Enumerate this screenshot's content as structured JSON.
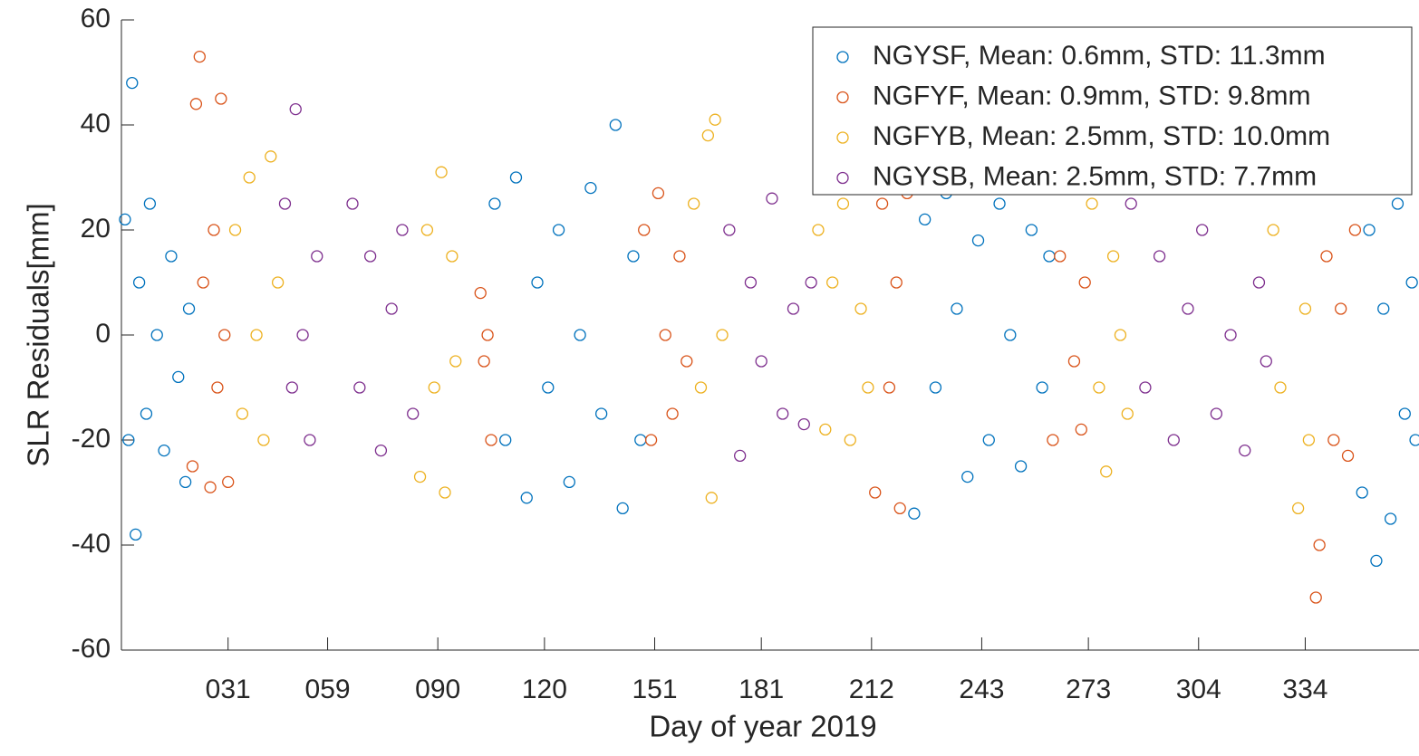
{
  "chart_data": {
    "type": "scatter",
    "xlabel": "Day of year 2019",
    "ylabel": "SLR Residuals[mm]",
    "xlim": [
      1,
      366
    ],
    "ylim": [
      -60,
      60
    ],
    "xticks": [
      {
        "value": 31,
        "label": "031"
      },
      {
        "value": 59,
        "label": "059"
      },
      {
        "value": 90,
        "label": "090"
      },
      120,
      151,
      181,
      212,
      243,
      273,
      304,
      334
    ],
    "yticks": [
      -60,
      -40,
      -20,
      0,
      20,
      40,
      60
    ],
    "legend": "upper right",
    "series": [
      {
        "name": "NGYSF, Mean: 0.6mm, STD: 11.3mm",
        "color": "#0072bd",
        "x": [
          2,
          3,
          4,
          5,
          6,
          8,
          9,
          11,
          13,
          15,
          17,
          19,
          20,
          106,
          109,
          112,
          115,
          118,
          121,
          124,
          127,
          130,
          133,
          136,
          140,
          142,
          145,
          147,
          224,
          227,
          230,
          233,
          236,
          239,
          242,
          245,
          248,
          251,
          254,
          257,
          260,
          262,
          350,
          352,
          354,
          356,
          358,
          360,
          362,
          364,
          365
        ],
        "values": [
          22,
          -20,
          48,
          -38,
          10,
          -15,
          25,
          0,
          -22,
          15,
          -8,
          -28,
          5,
          25,
          -20,
          30,
          -31,
          10,
          -10,
          20,
          -28,
          0,
          28,
          -15,
          40,
          -33,
          15,
          -20,
          -34,
          22,
          -10,
          27,
          5,
          -27,
          18,
          -20,
          25,
          0,
          -25,
          20,
          -10,
          15,
          -30,
          20,
          -43,
          5,
          -35,
          25,
          -15,
          10,
          -20
        ]
      },
      {
        "name": "NGFYF, Mean: 0.9mm, STD: 9.8mm",
        "color": "#d95319",
        "x": [
          21,
          22,
          23,
          24,
          26,
          27,
          28,
          29,
          30,
          31,
          102,
          103,
          104,
          105,
          148,
          150,
          152,
          154,
          156,
          158,
          160,
          213,
          215,
          217,
          219,
          220,
          222,
          263,
          265,
          267,
          269,
          271,
          272,
          337,
          338,
          340,
          342,
          344,
          346,
          348
        ],
        "values": [
          -25,
          44,
          53,
          10,
          -29,
          20,
          -10,
          45,
          0,
          -28,
          8,
          -5,
          0,
          -20,
          20,
          -20,
          27,
          0,
          -15,
          15,
          -5,
          -30,
          25,
          -10,
          10,
          -33,
          27,
          -20,
          15,
          28,
          -5,
          -18,
          10,
          -50,
          -40,
          15,
          -20,
          5,
          -23,
          20
        ]
      },
      {
        "name": "NGFYB, Mean: 2.5mm, STD: 10.0mm",
        "color": "#edb120",
        "x": [
          33,
          35,
          37,
          39,
          41,
          43,
          45,
          85,
          87,
          89,
          91,
          92,
          94,
          95,
          162,
          164,
          166,
          167,
          168,
          170,
          197,
          199,
          201,
          204,
          206,
          209,
          211,
          274,
          276,
          278,
          280,
          282,
          284,
          325,
          327,
          330,
          332,
          334,
          335
        ],
        "values": [
          20,
          -15,
          30,
          0,
          -20,
          34,
          10,
          -27,
          20,
          -10,
          31,
          -30,
          15,
          -5,
          25,
          -10,
          38,
          -31,
          41,
          0,
          20,
          -18,
          10,
          25,
          -20,
          5,
          -10,
          25,
          -10,
          -26,
          15,
          0,
          -15,
          20,
          -10,
          28,
          -33,
          5,
          -20
        ]
      },
      {
        "name": "NGYSB, Mean: 2.5mm, STD: 7.7mm",
        "color": "#7e2f8e",
        "x": [
          47,
          49,
          50,
          52,
          54,
          56,
          66,
          68,
          71,
          74,
          77,
          80,
          83,
          172,
          175,
          178,
          181,
          184,
          187,
          190,
          193,
          195,
          285,
          289,
          293,
          297,
          301,
          305,
          309,
          313,
          317,
          321,
          323
        ],
        "values": [
          25,
          -10,
          43,
          0,
          -20,
          15,
          25,
          -10,
          15,
          -22,
          5,
          20,
          -15,
          20,
          -23,
          10,
          -5,
          26,
          -15,
          5,
          -17,
          10,
          25,
          -10,
          15,
          -20,
          5,
          20,
          -15,
          0,
          -22,
          10,
          -5
        ]
      }
    ]
  }
}
